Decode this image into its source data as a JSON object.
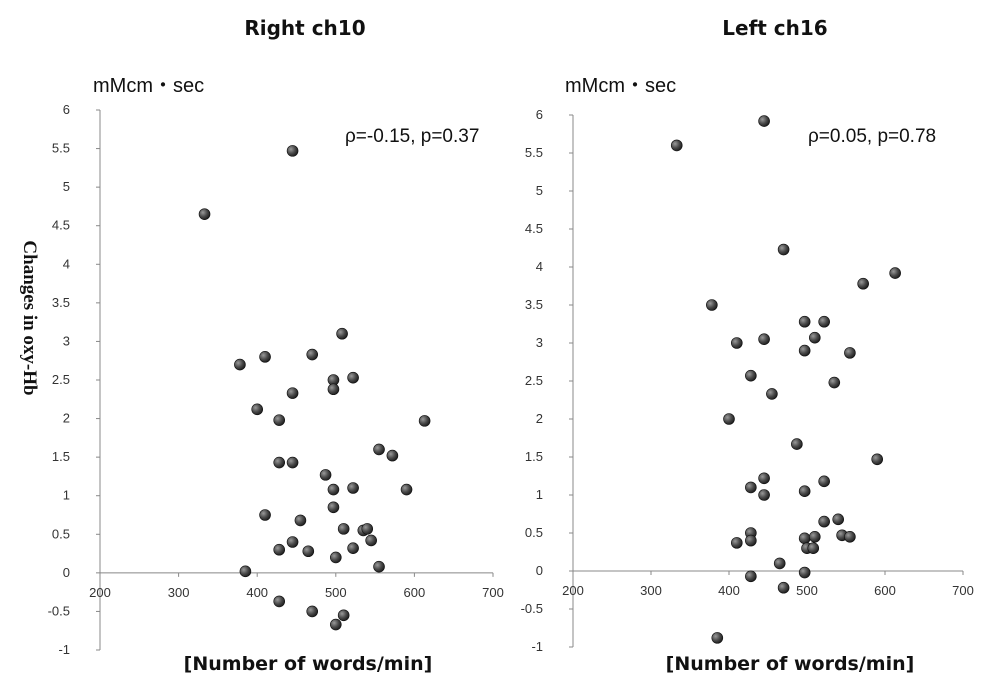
{
  "shared_ylabel": "Changes in oxy-Hb",
  "chart_data": [
    {
      "type": "scatter",
      "title": "Right ch10",
      "unit_label": "mMcm・sec",
      "annotation": "ρ=-0.15, p=0.37",
      "xlabel": "[Number of words/min]",
      "ylabel": "Changes in oxy-Hb",
      "xlim": [
        200,
        700
      ],
      "ylim": [
        -1,
        6
      ],
      "xticks": [
        "200",
        "300",
        "400",
        "500",
        "600",
        "700"
      ],
      "yticks": [
        "-1",
        "-0.5",
        "0",
        "0.5",
        "1",
        "1.5",
        "2",
        "2.5",
        "3",
        "3.5",
        "4",
        "4.5",
        "5",
        "5.5",
        "6"
      ],
      "grid": false,
      "points": [
        [
          333,
          4.65
        ],
        [
          445,
          5.47
        ],
        [
          378,
          2.7
        ],
        [
          410,
          2.8
        ],
        [
          470,
          2.83
        ],
        [
          508,
          3.1
        ],
        [
          445,
          2.33
        ],
        [
          497,
          2.5
        ],
        [
          497,
          2.38
        ],
        [
          522,
          2.53
        ],
        [
          400,
          2.12
        ],
        [
          428,
          1.98
        ],
        [
          428,
          1.43
        ],
        [
          445,
          1.43
        ],
        [
          487,
          1.27
        ],
        [
          555,
          1.6
        ],
        [
          572,
          1.52
        ],
        [
          613,
          1.97
        ],
        [
          497,
          1.08
        ],
        [
          522,
          1.1
        ],
        [
          590,
          1.08
        ],
        [
          410,
          0.75
        ],
        [
          455,
          0.68
        ],
        [
          497,
          0.85
        ],
        [
          510,
          0.57
        ],
        [
          535,
          0.55
        ],
        [
          540,
          0.57
        ],
        [
          445,
          0.4
        ],
        [
          428,
          0.3
        ],
        [
          465,
          0.28
        ],
        [
          522,
          0.32
        ],
        [
          500,
          0.2
        ],
        [
          545,
          0.42
        ],
        [
          555,
          0.08
        ],
        [
          385,
          0.02
        ],
        [
          428,
          -0.37
        ],
        [
          470,
          -0.5
        ],
        [
          510,
          -0.55
        ],
        [
          500,
          -0.67
        ]
      ]
    },
    {
      "type": "scatter",
      "title": "Left ch16",
      "unit_label": "mMcm・sec",
      "annotation": "ρ=0.05, p=0.78",
      "xlabel": "[Number of words/min]",
      "ylabel": "Changes in oxy-Hb",
      "xlim": [
        200,
        700
      ],
      "ylim": [
        -1,
        6
      ],
      "xticks": [
        "200",
        "300",
        "400",
        "500",
        "600",
        "700"
      ],
      "yticks": [
        "-1",
        "-0.5",
        "0",
        "0.5",
        "1",
        "1.5",
        "2",
        "2.5",
        "3",
        "3.5",
        "4",
        "4.5",
        "5",
        "5.5",
        "6"
      ],
      "grid": false,
      "points": [
        [
          333,
          5.6
        ],
        [
          445,
          5.92
        ],
        [
          470,
          4.23
        ],
        [
          613,
          3.92
        ],
        [
          572,
          3.78
        ],
        [
          378,
          3.5
        ],
        [
          497,
          3.28
        ],
        [
          522,
          3.28
        ],
        [
          410,
          3.0
        ],
        [
          445,
          3.05
        ],
        [
          510,
          3.07
        ],
        [
          497,
          2.9
        ],
        [
          555,
          2.87
        ],
        [
          428,
          2.57
        ],
        [
          535,
          2.48
        ],
        [
          455,
          2.33
        ],
        [
          400,
          2.0
        ],
        [
          487,
          1.67
        ],
        [
          590,
          1.47
        ],
        [
          445,
          1.22
        ],
        [
          522,
          1.18
        ],
        [
          428,
          1.1
        ],
        [
          445,
          1.0
        ],
        [
          497,
          1.05
        ],
        [
          522,
          0.65
        ],
        [
          540,
          0.68
        ],
        [
          428,
          0.5
        ],
        [
          545,
          0.47
        ],
        [
          555,
          0.45
        ],
        [
          428,
          0.4
        ],
        [
          410,
          0.37
        ],
        [
          497,
          0.43
        ],
        [
          510,
          0.45
        ],
        [
          500,
          0.3
        ],
        [
          508,
          0.3
        ],
        [
          465,
          0.1
        ],
        [
          428,
          -0.07
        ],
        [
          497,
          -0.02
        ],
        [
          470,
          -0.22
        ],
        [
          385,
          -0.88
        ]
      ]
    }
  ]
}
